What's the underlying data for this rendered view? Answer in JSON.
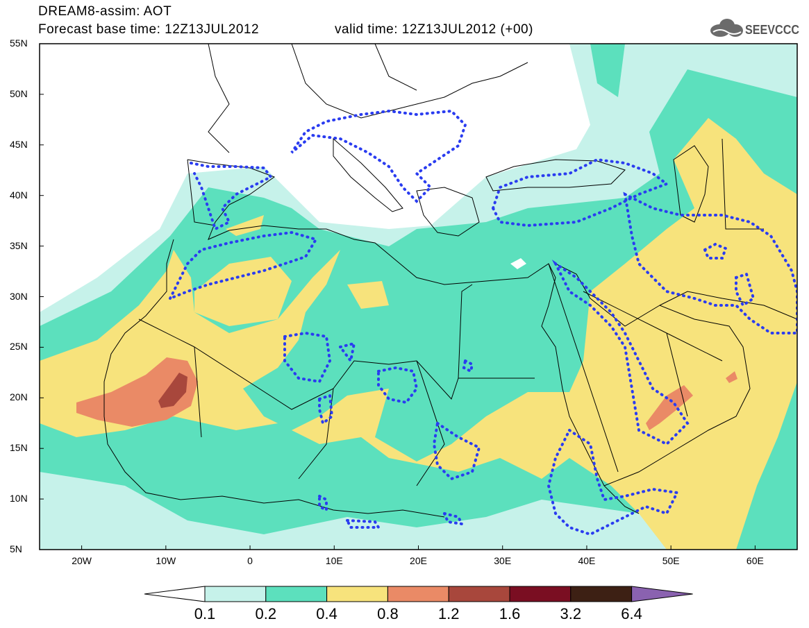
{
  "header": {
    "line1": "DREAM8-assim: AOT",
    "line2": "Forecast base time: 12Z13JUL2012",
    "valid": "valid time: 12Z13JUL2012 (+00)",
    "logo_text": "SEEVCCC"
  },
  "map": {
    "lon_range": [
      -25,
      65
    ],
    "lat_range": [
      5,
      55
    ],
    "lat_ticks": [
      "55N",
      "50N",
      "45N",
      "40N",
      "35N",
      "30N",
      "25N",
      "20N",
      "15N",
      "10N",
      "5N"
    ],
    "lon_ticks": [
      "20W",
      "10W",
      "0",
      "10E",
      "20E",
      "30E",
      "40E",
      "50E",
      "60E"
    ]
  },
  "colorbar": {
    "labels": [
      "0.1",
      "0.2",
      "0.4",
      "0.8",
      "1.2",
      "1.6",
      "3.2",
      "6.4"
    ],
    "colors": [
      "#ffffff",
      "#c6f2ea",
      "#5ce0bd",
      "#f7e37c",
      "#ea8a66",
      "#a8473c",
      "#7a0e22",
      "#3d2014",
      "#8a62b0"
    ]
  },
  "colors": {
    "ocean": "#ffffff",
    "level_0_1": "#c6f2ea",
    "level_0_2": "#5ce0bd",
    "level_0_4": "#f7e37c",
    "level_0_8": "#ea8a66",
    "level_1_2": "#a8473c",
    "dots": "#2a3cf0"
  }
}
